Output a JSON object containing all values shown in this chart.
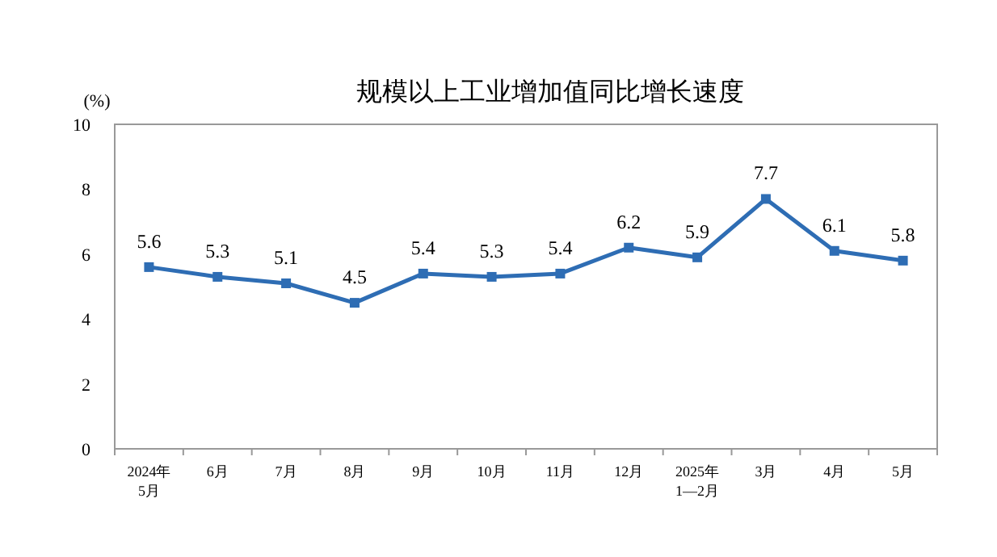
{
  "chart_data": {
    "type": "line",
    "title": "规模以上工业增加值同比增长速度",
    "ylabel": "(%)",
    "categories": [
      "2024年\n5月",
      "6月",
      "7月",
      "8月",
      "9月",
      "10月",
      "11月",
      "12月",
      "2025年\n1—2月",
      "3月",
      "4月",
      "5月"
    ],
    "series": [
      {
        "color": "#2e6db4",
        "values": [
          5.6,
          5.3,
          5.1,
          4.5,
          5.4,
          5.3,
          5.4,
          6.2,
          5.9,
          7.7,
          6.1,
          5.8
        ]
      }
    ],
    "ylim": [
      0,
      10
    ],
    "yticks": [
      0,
      2,
      4,
      6,
      8,
      10
    ],
    "marker": "square",
    "line_style": "solid",
    "grid": false,
    "data_labels": true
  }
}
